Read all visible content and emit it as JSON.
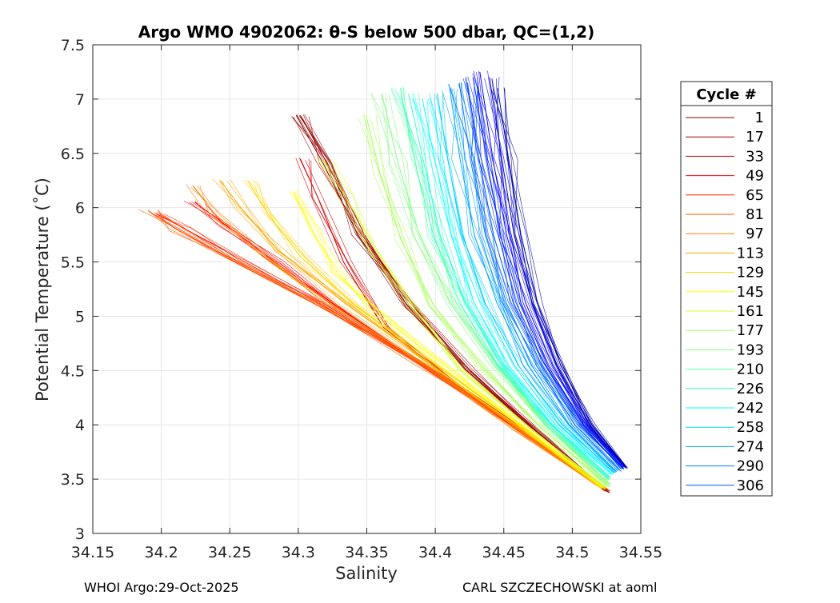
{
  "chart_data": {
    "type": "line",
    "title": "Argo WMO 4902062: θ-S below 500 dbar,  QC=(1,2)",
    "xlabel": "Salinity",
    "ylabel": "Potential Temperature (˚C)",
    "xlim": [
      34.15,
      34.55
    ],
    "ylim": [
      3,
      7.5
    ],
    "xticks": [
      "34.15",
      "34.2",
      "34.25",
      "34.3",
      "34.35",
      "34.4",
      "34.45",
      "34.5",
      "34.55"
    ],
    "yticks": [
      "3",
      "3.5",
      "4",
      "4.5",
      "5",
      "5.5",
      "6",
      "6.5",
      "7",
      "7.5"
    ],
    "grid": true,
    "legend_title": "Cycle #",
    "legend_placement": "right, outside plot",
    "colormap": "jet",
    "cycle_start": 1,
    "cycle_end": 306,
    "series": [
      {
        "name": "1",
        "color": "#800000",
        "x": [
          34.5255,
          34.4725,
          34.423,
          34.3795,
          34.3435,
          34.3185,
          34.2985
        ],
        "y": [
          3.4,
          3.95,
          4.5,
          5.1,
          5.75,
          6.4,
          6.85
        ]
      },
      {
        "name": "17",
        "color": "#a80000",
        "x": [
          34.5265,
          34.4745,
          34.4255,
          34.3825,
          34.346,
          34.3205,
          34.3015
        ],
        "y": [
          3.38,
          3.94,
          4.5,
          5.11,
          5.76,
          6.42,
          6.85
        ]
      },
      {
        "name": "33",
        "color": "#d40000",
        "x": [
          34.5245,
          34.468,
          34.412,
          34.362,
          34.333,
          34.314,
          34.3015
        ],
        "y": [
          3.4,
          3.9,
          4.4,
          4.9,
          5.5,
          6.1,
          6.45
        ]
      },
      {
        "name": "49",
        "color": "#fe0000",
        "x": [
          34.5225,
          34.462,
          34.397,
          34.333,
          34.283,
          34.246,
          34.2245
        ],
        "y": [
          3.42,
          3.95,
          4.5,
          5.05,
          5.5,
          5.85,
          6.05
        ]
      },
      {
        "name": "65",
        "color": "#ff2800",
        "x": [
          34.5205,
          34.459,
          34.39,
          34.318,
          34.261,
          34.218,
          34.1955
        ],
        "y": [
          3.43,
          3.98,
          4.55,
          5.1,
          5.5,
          5.8,
          5.95
        ]
      },
      {
        "name": "81",
        "color": "#ff5400",
        "x": [
          34.5185,
          34.4565,
          34.386,
          34.3115,
          34.2535,
          34.211,
          34.1905
        ],
        "y": [
          3.44,
          4.0,
          4.58,
          5.12,
          5.5,
          5.8,
          5.97
        ]
      },
      {
        "name": "97",
        "color": "#ff8000",
        "x": [
          34.5185,
          34.4575,
          34.3905,
          34.3235,
          34.274,
          34.2385,
          34.223
        ],
        "y": [
          3.44,
          3.97,
          4.56,
          5.12,
          5.55,
          5.95,
          6.2
        ]
      },
      {
        "name": "113",
        "color": "#ffa800",
        "x": [
          34.5205,
          34.4605,
          34.3975,
          34.334,
          34.286,
          34.258,
          34.243
        ],
        "y": [
          3.42,
          3.98,
          4.55,
          5.12,
          5.6,
          6.0,
          6.25
        ]
      },
      {
        "name": "129",
        "color": "#ffd400",
        "x": [
          34.5215,
          34.4635,
          34.4005,
          34.3395,
          34.3015,
          34.2775,
          34.263
        ],
        "y": [
          3.42,
          3.98,
          4.55,
          5.12,
          5.55,
          5.95,
          6.25
        ]
      },
      {
        "name": "145",
        "color": "#feff00",
        "x": [
          34.5225,
          34.4665,
          34.4065,
          34.3545,
          34.3285,
          34.3095,
          34.2965
        ],
        "y": [
          3.42,
          3.97,
          4.55,
          5.05,
          5.4,
          5.8,
          6.15
        ]
      },
      {
        "name": "161",
        "color": "#d4ff2a",
        "x": [
          34.525,
          34.4705,
          34.4215,
          34.3855,
          34.357,
          34.3345,
          34.3175
        ],
        "y": [
          3.42,
          3.95,
          4.5,
          5.05,
          5.6,
          6.1,
          6.45
        ]
      },
      {
        "name": "177",
        "color": "#a8ff56",
        "x": [
          34.527,
          34.4765,
          34.4335,
          34.399,
          34.375,
          34.36,
          34.3495
        ],
        "y": [
          3.43,
          3.98,
          4.55,
          5.1,
          5.7,
          6.3,
          6.85
        ]
      },
      {
        "name": "193",
        "color": "#7fff7f",
        "x": [
          34.5275,
          34.481,
          34.4425,
          34.411,
          34.3885,
          34.373,
          34.361
        ],
        "y": [
          3.45,
          3.99,
          4.55,
          5.12,
          5.75,
          6.4,
          7.05
        ]
      },
      {
        "name": "210",
        "color": "#54ffaa",
        "x": [
          34.527,
          34.482,
          34.4455,
          34.4175,
          34.3985,
          34.3845,
          34.3745
        ],
        "y": [
          3.5,
          4.0,
          4.55,
          5.12,
          5.75,
          6.45,
          7.1
        ]
      },
      {
        "name": "226",
        "color": "#2affd4",
        "x": [
          34.5275,
          34.4835,
          34.4485,
          34.422,
          34.4035,
          34.391,
          34.3805
        ],
        "y": [
          3.52,
          4.01,
          4.55,
          5.12,
          5.75,
          6.45,
          7.05
        ]
      },
      {
        "name": "242",
        "color": "#00ffff",
        "x": [
          34.5285,
          34.4875,
          34.4535,
          34.4285,
          34.4115,
          34.3995,
          34.3905
        ],
        "y": [
          3.55,
          4.0,
          4.55,
          5.12,
          5.75,
          6.45,
          7.0
        ]
      },
      {
        "name": "258",
        "color": "#00d4ff",
        "x": [
          34.5305,
          34.4925,
          34.4605,
          34.4365,
          34.42,
          34.409,
          34.4015
        ],
        "y": [
          3.56,
          4.0,
          4.55,
          5.12,
          5.75,
          6.45,
          7.05
        ]
      },
      {
        "name": "274",
        "color": "#00a8ff",
        "x": [
          34.5325,
          34.4975,
          34.4675,
          34.445,
          34.4285,
          34.418,
          34.4105
        ],
        "y": [
          3.57,
          4.0,
          4.55,
          5.12,
          5.75,
          6.45,
          7.1
        ]
      },
      {
        "name": "290",
        "color": "#0080ff",
        "x": [
          34.5345,
          34.502,
          34.4735,
          34.452,
          34.4365,
          34.4255,
          34.4175
        ],
        "y": [
          3.58,
          4.0,
          4.55,
          5.12,
          5.75,
          6.45,
          7.15
        ]
      },
      {
        "name": "306",
        "color": "#0054ff",
        "x": [
          34.5365,
          34.5055,
          34.4775,
          34.457,
          34.4425,
          34.432,
          34.4235
        ],
        "y": [
          3.6,
          4.0,
          4.55,
          5.12,
          5.75,
          6.45,
          7.15
        ]
      },
      {
        "color": "#0028ff",
        "x": [
          34.5375,
          34.5085,
          34.482,
          34.4615,
          34.4475,
          34.4375,
          34.4275
        ],
        "y": [
          3.6,
          4.0,
          4.55,
          5.12,
          5.75,
          6.45,
          7.2
        ]
      },
      {
        "color": "#0000ff",
        "x": [
          34.538,
          34.511,
          34.4855,
          34.466,
          34.452,
          34.442,
          34.4325
        ],
        "y": [
          3.61,
          4.0,
          4.55,
          5.12,
          5.75,
          6.45,
          7.25
        ]
      },
      {
        "color": "#0000d4",
        "x": [
          34.5385,
          34.5125,
          34.489,
          34.4705,
          34.4575,
          34.4485,
          34.4395
        ],
        "y": [
          3.61,
          4.0,
          4.55,
          5.12,
          5.75,
          6.45,
          7.2
        ]
      },
      {
        "color": "#0000a8",
        "x": [
          34.539,
          34.5145,
          34.4915,
          34.4745,
          34.4625,
          34.4535,
          34.4455
        ],
        "y": [
          3.61,
          4.0,
          4.55,
          5.12,
          5.75,
          6.45,
          7.1
        ]
      }
    ],
    "legend_entries": [
      {
        "label": "1",
        "color": "#800000"
      },
      {
        "label": "17",
        "color": "#a80000"
      },
      {
        "label": "33",
        "color": "#d40000"
      },
      {
        "label": "49",
        "color": "#fe0000"
      },
      {
        "label": "65",
        "color": "#ff2800"
      },
      {
        "label": "81",
        "color": "#ff5400"
      },
      {
        "label": "97",
        "color": "#ff8000"
      },
      {
        "label": "113",
        "color": "#ffa800"
      },
      {
        "label": "129",
        "color": "#ffd400"
      },
      {
        "label": "145",
        "color": "#feff00"
      },
      {
        "label": "161",
        "color": "#d4ff2a"
      },
      {
        "label": "177",
        "color": "#a8ff56"
      },
      {
        "label": "193",
        "color": "#7fff7f"
      },
      {
        "label": "210",
        "color": "#54ffaa"
      },
      {
        "label": "226",
        "color": "#2affd4"
      },
      {
        "label": "242",
        "color": "#00ffff"
      },
      {
        "label": "258",
        "color": "#00d4ff"
      },
      {
        "label": "274",
        "color": "#00a8ff"
      },
      {
        "label": "290",
        "color": "#0080ff"
      },
      {
        "label": "306",
        "color": "#0054ff"
      }
    ]
  },
  "footer": {
    "left": "WHOI Argo:29-Oct-2025",
    "right": "CARL SZCZECHOWSKI at aoml"
  }
}
